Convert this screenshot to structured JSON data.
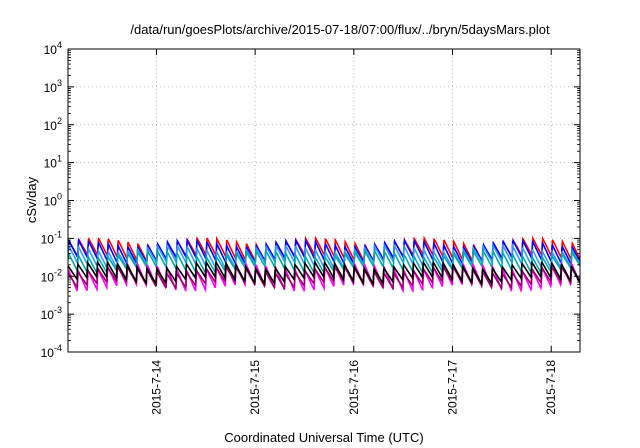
{
  "chart_data": {
    "type": "line",
    "title": "/data/run/goesPlots/archive/2015-07-18/07:00/flux/../bryn/5daysMars.plot",
    "xlabel": "Coordinated Universal Time (UTC)",
    "ylabel": "cSv/day",
    "yscale": "log",
    "ylim": [
      0.0001,
      10000
    ],
    "xlim": [
      "2015-07-13T02:30",
      "2015-07-18T07:00"
    ],
    "grid": true,
    "legend": "none",
    "x_ticks": [
      "2015-7-14",
      "2015-7-15",
      "2015-7-16",
      "2015-7-17",
      "2015-7-18"
    ],
    "y_ticks": [
      {
        "base": "10",
        "exp": "-4"
      },
      {
        "base": "10",
        "exp": "-3"
      },
      {
        "base": "10",
        "exp": "-2"
      },
      {
        "base": "10",
        "exp": "-1"
      },
      {
        "base": "10",
        "exp": "0"
      },
      {
        "base": "10",
        "exp": "1"
      },
      {
        "base": "10",
        "exp": "2"
      },
      {
        "base": "10",
        "exp": "3"
      },
      {
        "base": "10",
        "exp": "4"
      }
    ],
    "cycle_period_hours": 2.4,
    "series": [
      {
        "color": "#ff0000",
        "peak": 0.085,
        "trough": 0.03
      },
      {
        "color": "#0000ff",
        "peak": 0.075,
        "trough": 0.026
      },
      {
        "color": "#3399ff",
        "peak": 0.055,
        "trough": 0.02
      },
      {
        "color": "#00aaaa",
        "peak": 0.04,
        "trough": 0.015
      },
      {
        "color": "#ff00ff",
        "peak": 0.018,
        "trough": 0.005
      },
      {
        "color": "#990066",
        "peak": 0.015,
        "trough": 0.006
      },
      {
        "color": "#000000",
        "peak": 0.02,
        "trough": 0.008
      }
    ]
  }
}
